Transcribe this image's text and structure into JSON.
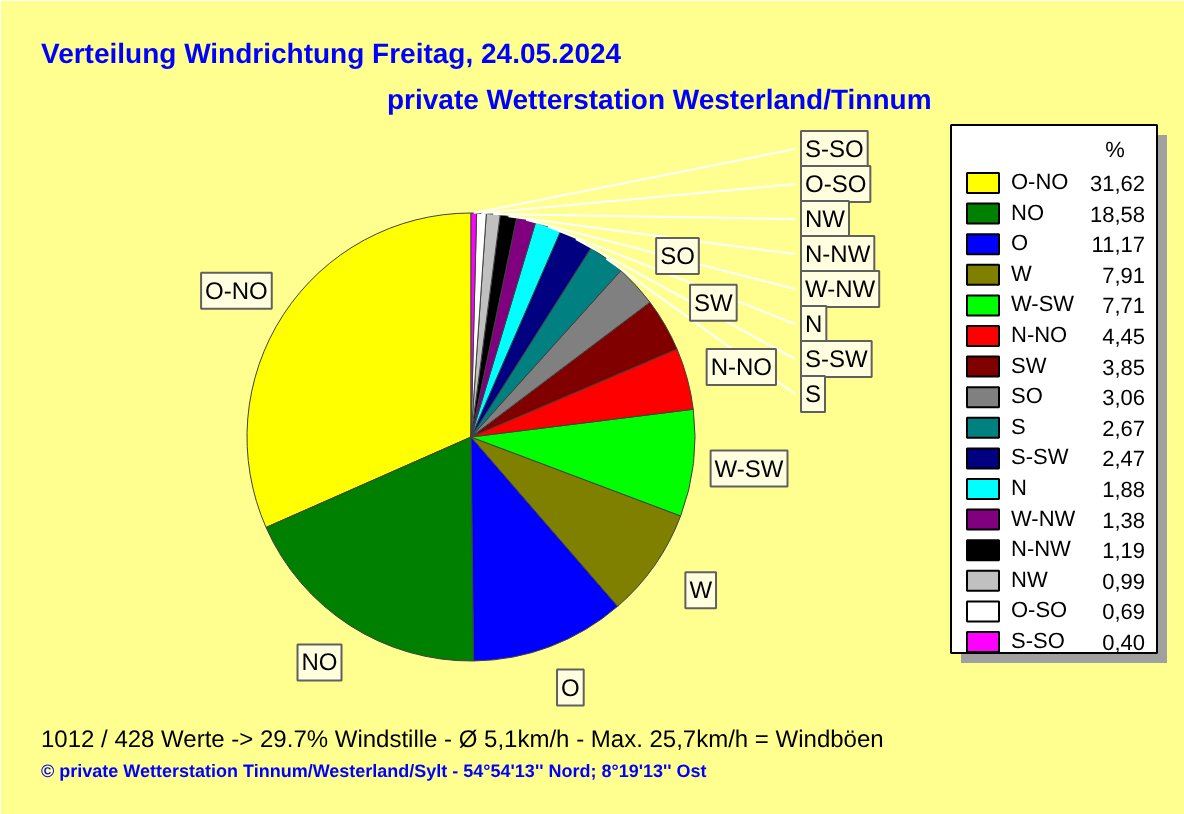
{
  "chart_data": {
    "type": "pie",
    "title": "Verteilung Windrichtung   Freitag, 24.05.2024",
    "subtitle": "private Wetterstation Westerland/Tinnum",
    "legend_title": "%",
    "legend": "right",
    "categories": [
      "O-NO",
      "NO",
      "O",
      "W",
      "W-SW",
      "N-NO",
      "SW",
      "SO",
      "S",
      "S-SW",
      "N",
      "W-NW",
      "N-NW",
      "NW",
      "O-SO",
      "S-SO"
    ],
    "values": [
      31.62,
      18.58,
      11.17,
      7.91,
      7.71,
      4.45,
      3.85,
      3.06,
      2.67,
      2.47,
      1.88,
      1.38,
      1.19,
      0.99,
      0.69,
      0.4
    ],
    "value_labels": [
      "31,62",
      "18,58",
      "11,17",
      "7,91",
      "7,71",
      "4,45",
      "3,85",
      "3,06",
      "2,67",
      "2,47",
      "1,88",
      "1,38",
      "1,19",
      "0,99",
      "0,69",
      "0,40"
    ],
    "colors": [
      "#ffff00",
      "#008000",
      "#0000ff",
      "#808000",
      "#00ff00",
      "#ff0000",
      "#800000",
      "#808080",
      "#008080",
      "#000080",
      "#00ffff",
      "#800080",
      "#000000",
      "#c0c0c0",
      "#ffffff",
      "#ff00ff"
    ],
    "annotations": [
      "1012 / 428 Werte  -> 29.7% Windstille   -   Ø 5,1km/h  -  Max. 25,7km/h = Windböen",
      "© private Wetterstation Tinnum/Westerland/Sylt  -  54°54'13'' Nord; 8°19'13'' Ost"
    ]
  }
}
